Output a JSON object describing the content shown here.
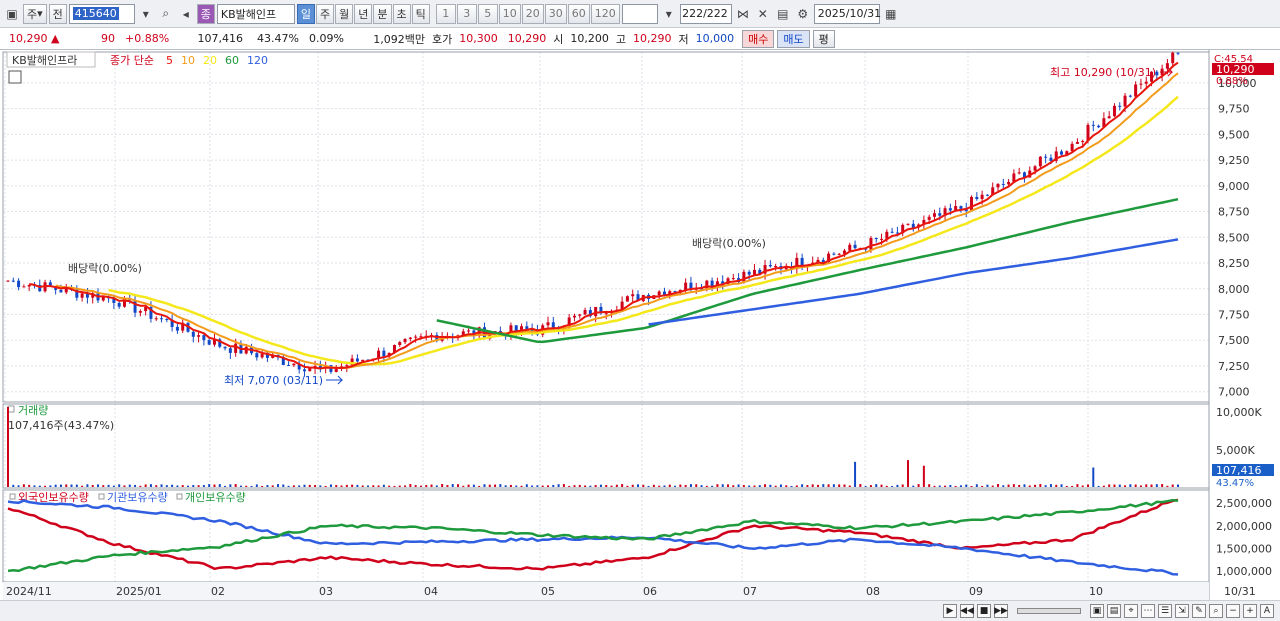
{
  "toolbar": {
    "type_label": "주",
    "prev_label": "전",
    "code": "415640",
    "badge": "종",
    "name": "KB발해인프",
    "periods": [
      "일",
      "주",
      "월",
      "년",
      "분",
      "초",
      "틱"
    ],
    "active_period": "일",
    "intervals": [
      "1",
      "3",
      "5",
      "10",
      "20",
      "30",
      "60",
      "120"
    ],
    "count": "222",
    "count_total": "/222",
    "date": "2025/10/31"
  },
  "quote": {
    "price": "10,290",
    "change": "90",
    "change_pct": "+0.88%",
    "volume": "107,416",
    "volume_pct": "43.47%",
    "turnover_pct": "0.09%",
    "amount": "1,092백만",
    "hoga_label": "호가",
    "ask": "10,300",
    "bid": "10,290",
    "open_label": "시",
    "open": "10,200",
    "high_label": "고",
    "high": "10,290",
    "low_label": "저",
    "low": "10,000",
    "buy_label": "매수",
    "sell_label": "매도",
    "avg_label": "평"
  },
  "price_panel": {
    "name_label": "KB발해인프라",
    "ma_label": "종가 단순",
    "ma": [
      {
        "label": "5",
        "color": "#e8160c"
      },
      {
        "label": "10",
        "color": "#f39b1b"
      },
      {
        "label": "20",
        "color": "#f4e81a"
      },
      {
        "label": "60",
        "color": "#1e9a3c"
      },
      {
        "label": "120",
        "color": "#2f5fe0"
      }
    ],
    "axis": [
      "10,000",
      "9,750",
      "9,500",
      "9,250",
      "9,000",
      "8,750",
      "8,500",
      "8,250",
      "8,000",
      "7,750",
      "7,500",
      "7,250",
      "7,000"
    ],
    "axis_top": "C:45.54",
    "last_price": "10,290",
    "last_pct": "0.88%",
    "high_annot": "최고 10,290 (10/31)",
    "low_annot": "최저 7,070 (03/11)",
    "div1": "배당락(0.00%)",
    "div2": "배당락(0.00%)"
  },
  "volume_panel": {
    "title": "거래량",
    "info": "107,416주(43.47%)",
    "axis": [
      "10,000K",
      "5,000K"
    ],
    "last": "107,416",
    "last_pct": "43.47%"
  },
  "holding_panel": {
    "legend": [
      {
        "label": "외국인보유수량",
        "color": "#d0021b"
      },
      {
        "label": "기관보유수량",
        "color": "#2f5fe0"
      },
      {
        "label": "개인보유수량",
        "color": "#1e9a3c"
      }
    ],
    "axis": [
      "2,500,000",
      "2,000,000",
      "1,500,000",
      "1,000,000"
    ]
  },
  "xaxis": [
    "2024/11",
    "2025/01",
    "02",
    "03",
    "04",
    "05",
    "06",
    "07",
    "08",
    "09",
    "10"
  ],
  "xaxis_last": "10/31",
  "chart_data": {
    "type": "line",
    "title": "KB발해인프라 일봉",
    "ylim": [
      6900,
      10300
    ],
    "dates": [
      "2024/11",
      "2025/01",
      "02",
      "03",
      "04",
      "05",
      "06",
      "07",
      "08",
      "09",
      "10",
      "10/31"
    ],
    "close": [
      8080,
      7900,
      7450,
      7200,
      7550,
      7600,
      7950,
      8150,
      8400,
      8800,
      9400,
      10290
    ],
    "ma120": [
      null,
      null,
      null,
      null,
      null,
      null,
      7650,
      7800,
      7950,
      8150,
      8300,
      8480
    ],
    "ma60": [
      null,
      null,
      null,
      null,
      7700,
      7480,
      7620,
      7950,
      8180,
      8400,
      8650,
      8870
    ],
    "high": {
      "value": 10290,
      "date": "10/31"
    },
    "low": {
      "value": 7070,
      "date": "03/11"
    },
    "volume_last": 107416,
    "holdings": {
      "foreign": [
        2400000,
        1600000,
        1050000,
        1300000,
        1150000,
        1050000,
        1300000,
        2000000,
        1850000,
        1500000,
        1700000,
        2600000
      ],
      "institution": [
        2550000,
        2400000,
        2100000,
        1600000,
        1650000,
        1700000,
        1750000,
        1500000,
        1700000,
        1500000,
        1200000,
        950000
      ],
      "individual": [
        1000000,
        1350000,
        1550000,
        2000000,
        1950000,
        1800000,
        1700000,
        2100000,
        1950000,
        2100000,
        2300000,
        2550000
      ]
    }
  }
}
